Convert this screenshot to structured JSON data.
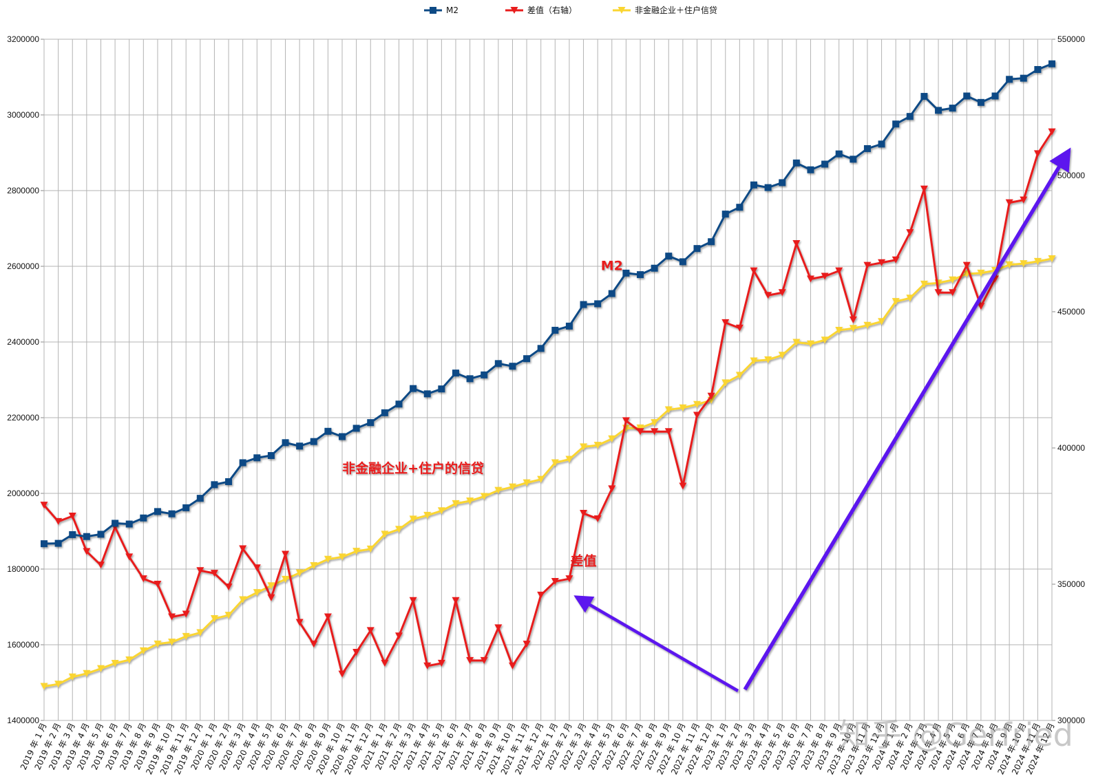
{
  "chart_data": {
    "type": "line",
    "categories": [
      "2019年1月",
      "2019年2月",
      "2019年3月",
      "2019年4月",
      "2019年5月",
      "2019年6月",
      "2019年7月",
      "2019年8月",
      "2019年9月",
      "2019年10月",
      "2019年11月",
      "2019年12月",
      "2020年1月",
      "2020年2月",
      "2020年3月",
      "2020年4月",
      "2020年5月",
      "2020年6月",
      "2020年7月",
      "2020年8月",
      "2020年9月",
      "2020年10月",
      "2020年11月",
      "2020年12月",
      "2021年1月",
      "2021年2月",
      "2021年3月",
      "2021年4月",
      "2021年5月",
      "2021年6月",
      "2021年7月",
      "2021年8月",
      "2021年9月",
      "2021年10月",
      "2021年11月",
      "2021年12月",
      "2022年1月",
      "2022年2月",
      "2022年3月",
      "2022年4月",
      "2022年5月",
      "2022年6月",
      "2022年7月",
      "2022年8月",
      "2022年9月",
      "2022年10月",
      "2022年11月",
      "2022年12月",
      "2023年1月",
      "2023年2月",
      "2023年3月",
      "2023年4月",
      "2023年5月",
      "2023年6月",
      "2023年7月",
      "2023年8月",
      "2023年9月",
      "2023年10月",
      "2023年11月",
      "2023年12月",
      "2024年1月",
      "2024年2月",
      "2024年3月",
      "2024年4月",
      "2024年5月",
      "2024年6月",
      "2024年7月",
      "2024年8月",
      "2024年9月",
      "2024年10月",
      "2024年11月",
      "2024年12月"
    ],
    "series": [
      {
        "name": "M2",
        "axis": "left",
        "color": "#0d4a85",
        "marker": "square",
        "values": [
          1867000,
          1868000,
          1891000,
          1886000,
          1892000,
          1921000,
          1919000,
          1935000,
          1952000,
          1946000,
          1962000,
          1987000,
          2023000,
          2031000,
          2081000,
          2094000,
          2100000,
          2134000,
          2125000,
          2137000,
          2164000,
          2150000,
          2172000,
          2187000,
          2213000,
          2236000,
          2277000,
          2263000,
          2276000,
          2318000,
          2303000,
          2313000,
          2343000,
          2336000,
          2356000,
          2383000,
          2431000,
          2442000,
          2499000,
          2501000,
          2528000,
          2582000,
          2578000,
          2595000,
          2627000,
          2612000,
          2647000,
          2665000,
          2738000,
          2756000,
          2815000,
          2808000,
          2821000,
          2873000,
          2855000,
          2870000,
          2897000,
          2883000,
          2911000,
          2923000,
          2976000,
          2996000,
          3049000,
          3012000,
          3018000,
          3050000,
          3033000,
          3050000,
          3094000,
          3097000,
          3120000,
          3135000
        ]
      },
      {
        "name": "差值（右轴）",
        "axis": "right",
        "color": "#e81c1c",
        "marker": "triangle-down",
        "values": [
          379000,
          373000,
          375000,
          362000,
          357000,
          371000,
          360000,
          352000,
          350000,
          338000,
          339000,
          355000,
          354000,
          349000,
          363000,
          356000,
          345000,
          361000,
          336000,
          328000,
          338000,
          317000,
          325000,
          333000,
          321000,
          331000,
          344000,
          320000,
          321000,
          344000,
          322000,
          322000,
          334000,
          320000,
          328000,
          346000,
          351000,
          352000,
          376000,
          374000,
          385000,
          410000,
          406000,
          406000,
          406000,
          386000,
          412000,
          419000,
          446000,
          444000,
          465000,
          456000,
          457000,
          475000,
          462000,
          463000,
          465000,
          447000,
          467000,
          468000,
          469000,
          479000,
          495000,
          457000,
          457000,
          467000,
          452000,
          462000,
          490000,
          491000,
          508000,
          516000
        ]
      },
      {
        "name": "非金融企业＋住户信贷",
        "axis": "left",
        "color": "#fad531",
        "marker": "triangle-down",
        "values": [
          1490000,
          1496000,
          1515000,
          1524000,
          1537000,
          1551000,
          1560000,
          1584000,
          1602000,
          1607000,
          1622000,
          1632000,
          1669000,
          1678000,
          1719000,
          1738000,
          1756000,
          1773000,
          1790000,
          1809000,
          1826000,
          1832000,
          1847000,
          1853000,
          1892000,
          1905000,
          1932000,
          1942000,
          1954000,
          1973000,
          1980000,
          1992000,
          2008000,
          2017000,
          2028000,
          2037000,
          2081000,
          2090000,
          2123000,
          2127000,
          2144000,
          2172000,
          2173000,
          2187000,
          2221000,
          2226000,
          2235000,
          2246000,
          2292000,
          2312000,
          2350000,
          2353000,
          2365000,
          2399000,
          2395000,
          2405000,
          2431000,
          2436000,
          2444000,
          2454000,
          2507000,
          2516000,
          2553000,
          2556000,
          2564000,
          2580000,
          2582000,
          2589000,
          2604000,
          2607000,
          2613000,
          2620000
        ]
      }
    ],
    "ylim_left": [
      1400000,
      3200000
    ],
    "ylim_right": [
      300000,
      550000
    ],
    "yticks_left": [
      "1400000",
      "1600000",
      "1800000",
      "2000000",
      "2200000",
      "2400000",
      "2600000",
      "2800000",
      "3000000",
      "3200000"
    ],
    "yticks_right": [
      "300000",
      "350000",
      "400000",
      "450000",
      "500000",
      "550000"
    ],
    "grid": true,
    "legend": "top-center",
    "annotations": [
      {
        "text": "M2",
        "category": "2022年5月",
        "value": 2590000,
        "axis": "left"
      },
      {
        "text": "非金融企业+住户的信贷",
        "category": "2021年3月",
        "value": 2055000,
        "axis": "left"
      },
      {
        "text": "差值",
        "category": "2022年3月",
        "value": 1810000,
        "axis": "left"
      }
    ],
    "arrow_color": "#5b18ee",
    "watermark": "知乎 @Gerfried"
  }
}
